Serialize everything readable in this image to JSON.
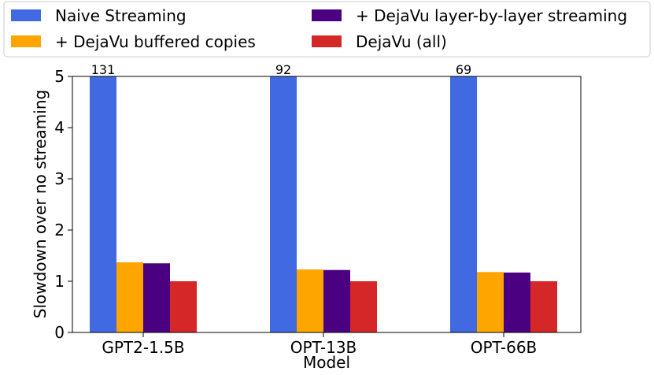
{
  "chart_data": {
    "type": "bar",
    "title": "",
    "xlabel": "Model",
    "ylabel": "Slowdown over no streaming",
    "ylim": [
      0,
      5
    ],
    "yticks": [
      0,
      1,
      2,
      3,
      4,
      5
    ],
    "grid": false,
    "legend_position": "top",
    "categories": [
      "GPT2-1.5B",
      "OPT-13B",
      "OPT-66B"
    ],
    "series": [
      {
        "name": "Naive Streaming",
        "color": "#4169e1",
        "values": [
          131,
          92,
          69
        ],
        "labels": [
          "131",
          "92",
          "69"
        ]
      },
      {
        "name": "+ DejaVu buffered copies",
        "color": "#ffa500",
        "values": [
          1.37,
          1.23,
          1.18
        ]
      },
      {
        "name": "+ DejaVu layer-by-layer streaming",
        "color": "#4b0082",
        "values": [
          1.35,
          1.22,
          1.17
        ]
      },
      {
        "name": "DejaVu (all)",
        "color": "#d62728",
        "values": [
          1.0,
          1.0,
          1.0
        ]
      }
    ]
  }
}
